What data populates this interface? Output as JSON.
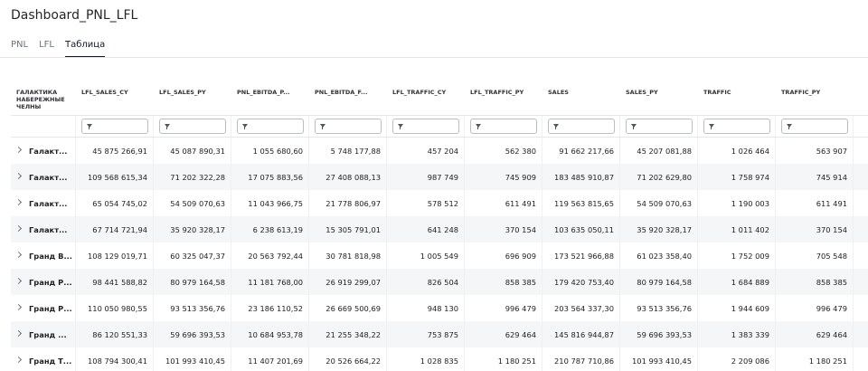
{
  "page": {
    "title": "Dashboard_PNL_LFL"
  },
  "tabs": [
    {
      "label": "PNL",
      "active": false
    },
    {
      "label": "LFL",
      "active": false
    },
    {
      "label": "Таблица",
      "active": true
    }
  ],
  "table": {
    "columns": [
      "ГАЛАКТИКА НАБЕРЕЖНЫЕ ЧЕЛНЫ",
      "LFL_SALES_CY",
      "LFL_SALES_PY",
      "PNL_EBITDA_P...",
      "PNL_EBITDA_F...",
      "LFL_TRAFFIC_CY",
      "LFL_TRAFFIC_PY",
      "SALES",
      "SALES_PY",
      "TRAFFIC",
      "TRAFFIC_PY"
    ],
    "rows": [
      [
        "Галакт...",
        "45 875 266,91",
        "45 087 890,31",
        "1 055 680,60",
        "5 748 177,88",
        "457 204",
        "562 380",
        "91 662 217,66",
        "45 207 081,88",
        "1 026 464",
        "563 907"
      ],
      [
        "Галакт...",
        "109 568 615,34",
        "71 202 322,28",
        "17 075 883,56",
        "27 408 088,13",
        "987 749",
        "745 909",
        "183 485 910,87",
        "71 202 629,80",
        "1 758 974",
        "745 914"
      ],
      [
        "Галакт...",
        "65 054 745,02",
        "54 509 070,63",
        "11 043 966,75",
        "21 778 806,97",
        "578 512",
        "611 491",
        "119 563 815,65",
        "54 509 070,63",
        "1 190 003",
        "611 491"
      ],
      [
        "Галакт...",
        "67 714 721,94",
        "35 920 328,17",
        "6 238 613,19",
        "15 305 791,01",
        "641 248",
        "370 154",
        "103 635 050,11",
        "35 920 328,17",
        "1 011 402",
        "370 154"
      ],
      [
        "Гранд В...",
        "108 129 019,71",
        "60 325 047,37",
        "20 563 792,44",
        "30 781 818,98",
        "1 005 549",
        "696 909",
        "173 521 966,88",
        "61 023 358,40",
        "1 752 009",
        "705 548"
      ],
      [
        "Гранд Р...",
        "98 441 588,82",
        "80 979 164,58",
        "11 181 768,00",
        "26 919 299,07",
        "826 504",
        "858 385",
        "179 420 753,40",
        "80 979 164,58",
        "1 684 889",
        "858 385"
      ],
      [
        "Гранд Р...",
        "110 050 980,55",
        "93 513 356,76",
        "23 186 110,52",
        "26 669 500,69",
        "948 130",
        "996 479",
        "203 564 337,30",
        "93 513 356,76",
        "1 944 609",
        "996 479"
      ],
      [
        "Гранд ...",
        "86 120 551,33",
        "59 696 393,53",
        "10 684 953,78",
        "21 255 348,22",
        "753 875",
        "629 464",
        "145 816 944,87",
        "59 696 393,53",
        "1 383 339",
        "629 464"
      ],
      [
        "Гранд Т...",
        "108 794 300,41",
        "101 993 410,45",
        "11 407 201,69",
        "20 526 664,22",
        "1 028 835",
        "1 180 251",
        "210 787 710,86",
        "101 993 410,45",
        "2 209 086",
        "1 180 251"
      ]
    ]
  },
  "icons": {
    "filter": "filter-icon",
    "expand": "chevron-right-icon"
  }
}
